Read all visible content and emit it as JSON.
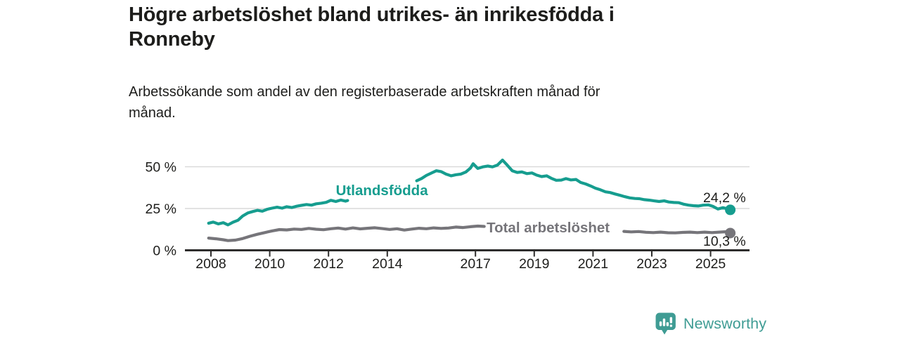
{
  "title": {
    "text": "Högre arbetslöshet bland utrikes- än inrikesfödda i Ronneby",
    "lines": [
      "Högre arbetslöshet bland utrikes- än inrikesfödda i",
      "Ronneby"
    ]
  },
  "subtitle": {
    "text": "Arbetssökande som andel av den registerbaserade arbetskraften månad för månad.",
    "lines": [
      "Arbetssökande som andel av den registerbaserade arbetskraften månad för",
      "månad."
    ]
  },
  "chart_data": {
    "type": "line",
    "unit": "%",
    "text_color": "#1d1d1b",
    "grid_color": "#d9d9d9",
    "axis_color": "#2e2d2c",
    "x_axis": {
      "tick_years": [
        2008,
        2010,
        2012,
        2014,
        2017,
        2019,
        2021,
        2023,
        2025
      ],
      "range": [
        2007.1,
        2026.3
      ],
      "gridlines": false
    },
    "y_axis": {
      "ticks": [
        0,
        25,
        50
      ],
      "tick_labels": [
        "0 %",
        "25 %",
        "50 %"
      ],
      "range": [
        0,
        57
      ],
      "gridlines": true
    },
    "series": [
      {
        "name": "Utlandsfödda",
        "color": "#169d8f",
        "line_label": {
          "text": "Utlandsfödda",
          "x": 2012.25,
          "y": 33.0
        },
        "end_point": {
          "x": 2025.67,
          "y": 24.2
        },
        "end_label": {
          "text": "24,2 %",
          "x": 2026.2,
          "y": 28.8
        },
        "segments": [
          [
            [
              2007.92,
              16.2
            ],
            [
              2008.08,
              16.9
            ],
            [
              2008.25,
              15.8
            ],
            [
              2008.42,
              16.5
            ],
            [
              2008.58,
              15.2
            ],
            [
              2008.75,
              16.8
            ],
            [
              2008.92,
              18.0
            ],
            [
              2009.08,
              20.5
            ],
            [
              2009.25,
              22.3
            ],
            [
              2009.42,
              23.2
            ],
            [
              2009.58,
              23.9
            ],
            [
              2009.75,
              23.4
            ],
            [
              2009.92,
              24.6
            ],
            [
              2010.08,
              25.2
            ],
            [
              2010.25,
              25.8
            ],
            [
              2010.42,
              25.2
            ],
            [
              2010.58,
              26.1
            ],
            [
              2010.75,
              25.6
            ],
            [
              2010.92,
              26.4
            ],
            [
              2011.08,
              26.9
            ],
            [
              2011.25,
              27.4
            ],
            [
              2011.42,
              27.0
            ],
            [
              2011.58,
              27.8
            ],
            [
              2011.75,
              28.2
            ],
            [
              2011.92,
              28.7
            ],
            [
              2012.08,
              29.9
            ],
            [
              2012.25,
              29.2
            ],
            [
              2012.42,
              30.1
            ],
            [
              2012.58,
              29.4
            ],
            [
              2012.65,
              29.8
            ]
          ],
          [
            [
              2015.0,
              41.6
            ],
            [
              2015.17,
              43.0
            ],
            [
              2015.33,
              44.8
            ],
            [
              2015.5,
              46.2
            ],
            [
              2015.67,
              47.6
            ],
            [
              2015.83,
              47.1
            ],
            [
              2016.0,
              45.6
            ],
            [
              2016.17,
              44.6
            ],
            [
              2016.33,
              45.2
            ],
            [
              2016.5,
              45.6
            ],
            [
              2016.67,
              46.8
            ],
            [
              2016.83,
              49.2
            ],
            [
              2016.92,
              51.8
            ],
            [
              2017.08,
              49.0
            ],
            [
              2017.25,
              49.9
            ],
            [
              2017.42,
              50.4
            ],
            [
              2017.58,
              49.9
            ],
            [
              2017.75,
              51.0
            ],
            [
              2017.92,
              54.0
            ],
            [
              2018.08,
              51.0
            ],
            [
              2018.25,
              47.6
            ],
            [
              2018.42,
              46.6
            ],
            [
              2018.58,
              46.9
            ],
            [
              2018.75,
              45.9
            ],
            [
              2018.92,
              46.3
            ],
            [
              2019.08,
              45.0
            ],
            [
              2019.25,
              44.1
            ],
            [
              2019.42,
              44.6
            ],
            [
              2019.58,
              43.1
            ],
            [
              2019.75,
              41.9
            ],
            [
              2019.92,
              42.0
            ],
            [
              2020.08,
              42.9
            ],
            [
              2020.25,
              42.1
            ],
            [
              2020.42,
              42.4
            ],
            [
              2020.58,
              40.6
            ],
            [
              2020.75,
              39.7
            ],
            [
              2020.92,
              38.5
            ],
            [
              2021.08,
              37.2
            ],
            [
              2021.25,
              36.2
            ],
            [
              2021.42,
              35.0
            ],
            [
              2021.58,
              34.6
            ],
            [
              2021.75,
              33.7
            ],
            [
              2021.92,
              32.9
            ],
            [
              2022.08,
              32.1
            ],
            [
              2022.25,
              31.4
            ],
            [
              2022.42,
              31.0
            ],
            [
              2022.58,
              30.9
            ],
            [
              2022.75,
              30.3
            ],
            [
              2022.92,
              30.0
            ],
            [
              2023.08,
              29.6
            ],
            [
              2023.25,
              29.2
            ],
            [
              2023.42,
              29.6
            ],
            [
              2023.58,
              28.9
            ],
            [
              2023.75,
              28.6
            ],
            [
              2023.92,
              28.5
            ],
            [
              2024.08,
              27.6
            ],
            [
              2024.25,
              27.0
            ],
            [
              2024.42,
              26.7
            ],
            [
              2024.58,
              26.5
            ],
            [
              2024.75,
              27.0
            ],
            [
              2024.92,
              27.2
            ],
            [
              2025.08,
              26.3
            ],
            [
              2025.25,
              24.7
            ],
            [
              2025.42,
              25.5
            ],
            [
              2025.55,
              24.9
            ],
            [
              2025.67,
              24.2
            ]
          ]
        ]
      },
      {
        "name": "Total arbetslöshet",
        "color": "#76757a",
        "line_label": {
          "text": "Total arbetslöshet",
          "x": 2017.38,
          "y": 10.8
        },
        "end_point": {
          "x": 2025.67,
          "y": 10.3
        },
        "end_label": {
          "text": "10,3 %",
          "x": 2026.2,
          "y": 2.8
        },
        "segments": [
          [
            [
              2007.92,
              7.3
            ],
            [
              2008.17,
              6.9
            ],
            [
              2008.42,
              6.3
            ],
            [
              2008.58,
              5.8
            ],
            [
              2008.83,
              6.1
            ],
            [
              2009.08,
              7.0
            ],
            [
              2009.33,
              8.4
            ],
            [
              2009.58,
              9.6
            ],
            [
              2009.83,
              10.6
            ],
            [
              2010.08,
              11.6
            ],
            [
              2010.33,
              12.4
            ],
            [
              2010.58,
              12.2
            ],
            [
              2010.83,
              12.7
            ],
            [
              2011.08,
              12.5
            ],
            [
              2011.33,
              13.1
            ],
            [
              2011.58,
              12.6
            ],
            [
              2011.83,
              12.3
            ],
            [
              2012.08,
              12.9
            ],
            [
              2012.33,
              13.3
            ],
            [
              2012.58,
              12.7
            ],
            [
              2012.83,
              13.4
            ],
            [
              2013.08,
              12.8
            ],
            [
              2013.33,
              13.2
            ],
            [
              2013.58,
              13.5
            ],
            [
              2013.83,
              13.0
            ],
            [
              2014.08,
              12.5
            ],
            [
              2014.33,
              12.9
            ],
            [
              2014.58,
              12.1
            ],
            [
              2014.83,
              12.7
            ],
            [
              2015.08,
              13.2
            ],
            [
              2015.33,
              12.9
            ],
            [
              2015.58,
              13.4
            ],
            [
              2015.83,
              13.1
            ],
            [
              2016.08,
              13.3
            ],
            [
              2016.33,
              13.9
            ],
            [
              2016.58,
              13.6
            ],
            [
              2016.83,
              14.1
            ],
            [
              2017.08,
              14.5
            ],
            [
              2017.3,
              14.3
            ]
          ],
          [
            [
              2022.05,
              11.3
            ],
            [
              2022.3,
              11.0
            ],
            [
              2022.55,
              11.2
            ],
            [
              2022.8,
              10.8
            ],
            [
              2023.05,
              10.6
            ],
            [
              2023.3,
              10.9
            ],
            [
              2023.55,
              10.5
            ],
            [
              2023.8,
              10.4
            ],
            [
              2024.05,
              10.7
            ],
            [
              2024.3,
              10.9
            ],
            [
              2024.55,
              10.6
            ],
            [
              2024.8,
              10.9
            ],
            [
              2025.05,
              10.6
            ],
            [
              2025.3,
              10.9
            ],
            [
              2025.5,
              11.1
            ],
            [
              2025.67,
              10.3
            ]
          ]
        ]
      }
    ]
  },
  "branding": {
    "name": "Newsworthy",
    "color": "#3f9c94",
    "icon": "newsworthy-speech-bubble-bar-chart"
  }
}
